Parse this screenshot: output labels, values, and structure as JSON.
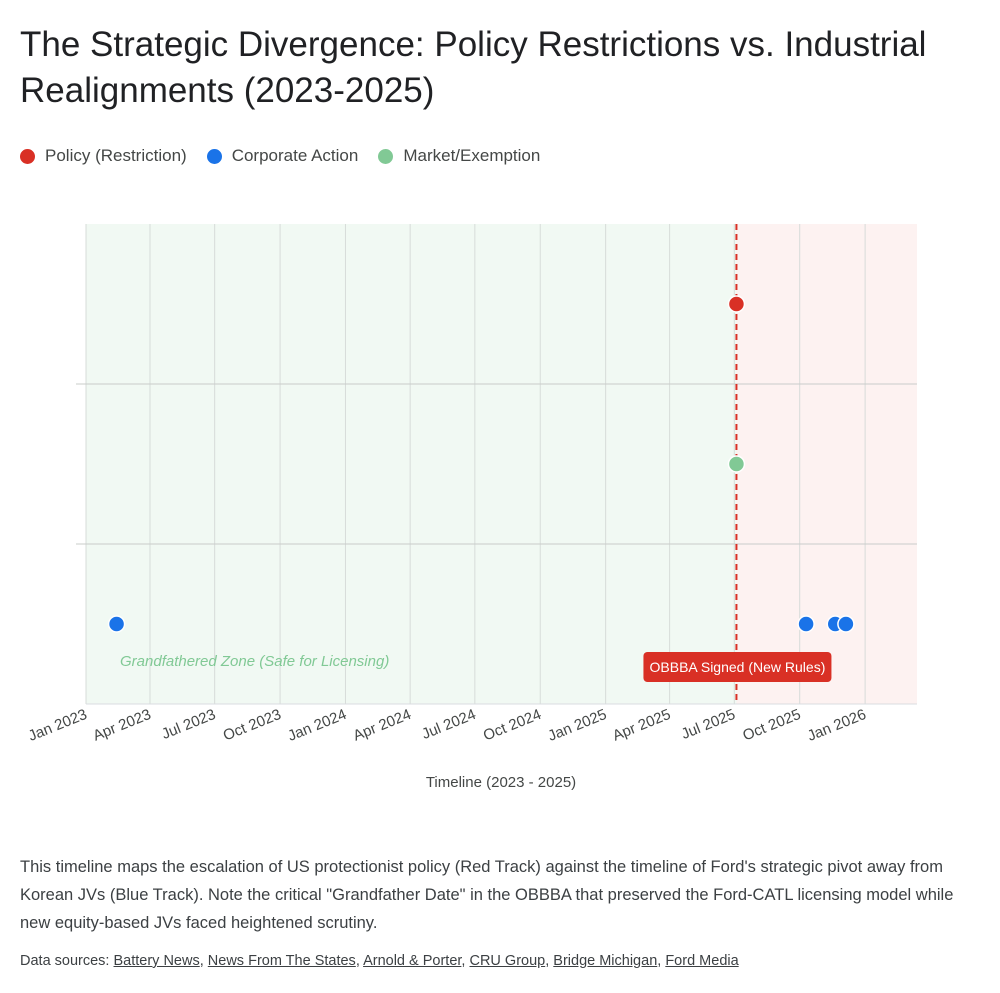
{
  "title": "The Strategic Divergence: Policy Restrictions vs. Industrial Realignments (2023-2025)",
  "legend": [
    {
      "label": "Policy (Restriction)",
      "color": "#d93025"
    },
    {
      "label": "Corporate Action",
      "color": "#1a73e8"
    },
    {
      "label": "Market/Exemption",
      "color": "#81c995"
    }
  ],
  "chart_data": {
    "type": "scatter",
    "title": "The Strategic Divergence: Policy Restrictions vs. Industrial Realignments (2023-2025)",
    "xlabel": "Timeline (2023 - 2025)",
    "ylabel": "",
    "x_ticks": [
      "Jan 2023",
      "Apr 2023",
      "Jul 2023",
      "Oct 2023",
      "Jan 2024",
      "Apr 2024",
      "Jul 2024",
      "Oct 2024",
      "Jan 2025",
      "Apr 2025",
      "Jul 2025",
      "Oct 2025",
      "Jan 2026"
    ],
    "xlim": [
      "2023-01-01",
      "2026-03-15"
    ],
    "tracks": [
      "Policy (Restriction)",
      "Market/Exemption",
      "Corporate Action"
    ],
    "grid": true,
    "legend_position": "top-left",
    "series": [
      {
        "name": "Policy (Restriction)",
        "color": "#d93025",
        "track": 0,
        "x": [
          "2025-07-04"
        ]
      },
      {
        "name": "Market/Exemption",
        "color": "#81c995",
        "track": 1,
        "x": [
          "2025-07-04"
        ]
      },
      {
        "name": "Corporate Action",
        "color": "#1a73e8",
        "track": 2,
        "x": [
          "2023-02-13",
          "2025-10-10",
          "2025-11-20",
          "2025-12-05"
        ]
      }
    ],
    "regions": [
      {
        "label": "Grandfathered Zone (Safe for Licensing)",
        "from": "2023-01-01",
        "to": "2025-07-04",
        "color": "#e6f4ea"
      },
      {
        "label": "",
        "from": "2025-07-04",
        "to": "2026-03-15",
        "color": "#fce8e6"
      }
    ],
    "reference_line": {
      "x": "2025-07-04",
      "label": "OBBBA Signed (New Rules)",
      "color": "#d93025"
    }
  },
  "description": "This timeline maps the escalation of US protectionist policy (Red Track) against the timeline of Ford's strategic pivot away from Korean JVs (Blue Track). Note the critical \"Grandfather Date\" in the OBBBA that preserved the Ford-CATL licensing model while new equity-based JVs faced heightened scrutiny.",
  "sources": {
    "label": "Data sources:",
    "items": [
      "Battery News",
      "News From The States",
      "Arnold & Porter",
      "CRU Group",
      "Bridge Michigan",
      "Ford Media"
    ]
  }
}
